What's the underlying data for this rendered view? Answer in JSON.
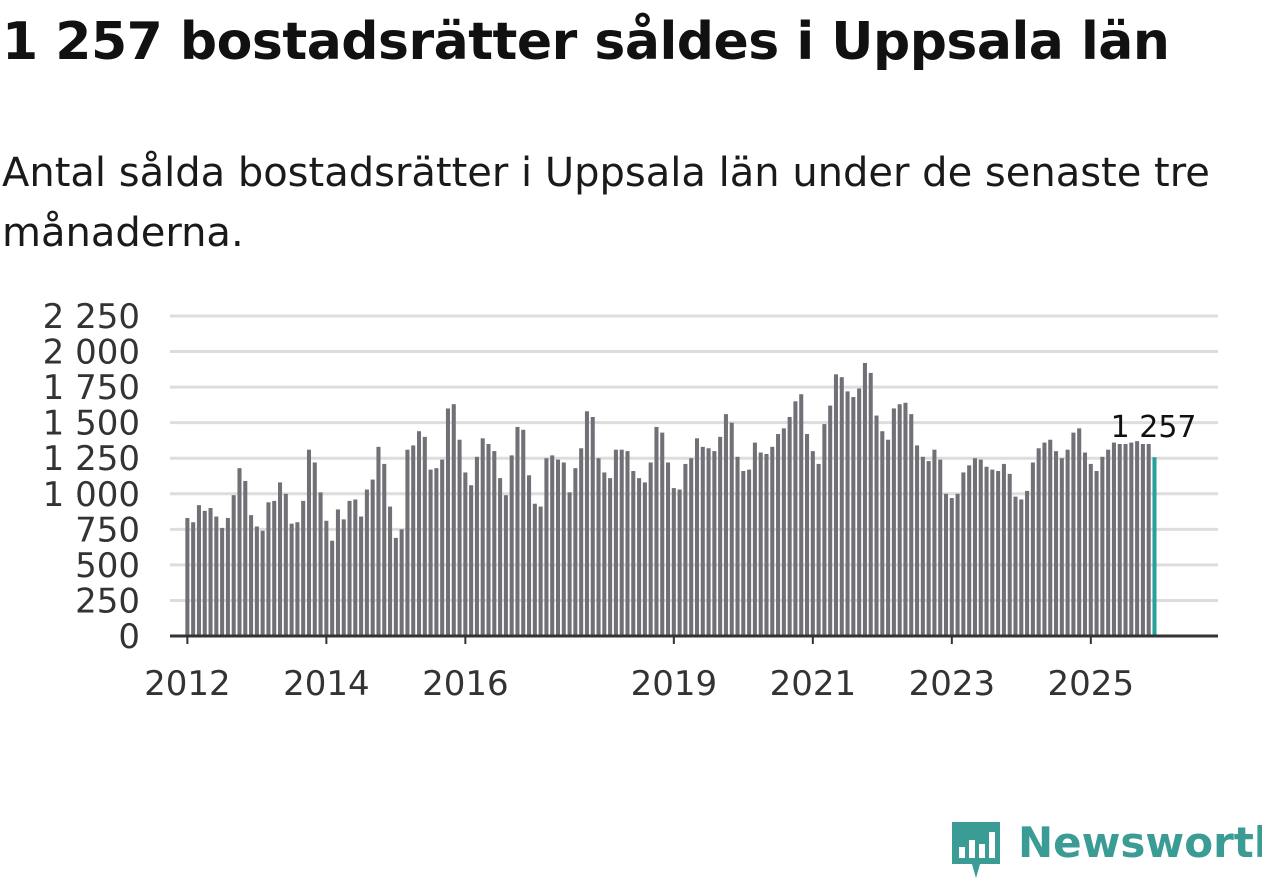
{
  "title": "1 257 bostadsrätter såldes i Uppsala län",
  "subtitle": "Antal sålda bostadsrätter i Uppsala län under de senaste tre månaderna.",
  "brand": {
    "name": "Newsworthy",
    "color": "#3a9c94",
    "icon": "bar-chart-bubble-icon"
  },
  "colors": {
    "bar": "#717076",
    "highlight": "#2aa198",
    "grid": "#dddddd",
    "axis": "#333333"
  },
  "chart_data": {
    "type": "bar",
    "title": "1 257 bostadsrätter såldes i Uppsala län",
    "subtitle": "Antal sålda bostadsrätter i Uppsala län under de senaste tre månaderna.",
    "xlabel": "",
    "ylabel": "",
    "ylim": [
      0,
      2250
    ],
    "yticks": [
      0,
      250,
      500,
      750,
      1000,
      1250,
      1500,
      1750,
      2000,
      2250
    ],
    "ytick_labels": [
      "0",
      "250",
      "500",
      "750",
      "1 000",
      "1 250",
      "1 500",
      "1 750",
      "2 000",
      "2 250"
    ],
    "xlim": [
      2011.75,
      2026.83
    ],
    "xticks": [
      2012,
      2014,
      2016,
      2019,
      2021,
      2023,
      2025
    ],
    "xtick_labels": [
      "2012",
      "2014",
      "2016",
      "2019",
      "2021",
      "2023",
      "2025"
    ],
    "x_start": 2012.0,
    "x_step": 0.08333,
    "grid": true,
    "last_value_label": "1 257",
    "values": [
      830,
      800,
      920,
      880,
      900,
      840,
      760,
      830,
      990,
      1180,
      1090,
      850,
      770,
      740,
      940,
      950,
      1080,
      1000,
      790,
      800,
      950,
      1310,
      1220,
      1010,
      810,
      670,
      890,
      820,
      950,
      960,
      840,
      1030,
      1100,
      1330,
      1210,
      910,
      690,
      750,
      1310,
      1340,
      1440,
      1400,
      1170,
      1180,
      1240,
      1600,
      1630,
      1380,
      1150,
      1060,
      1260,
      1390,
      1350,
      1300,
      1110,
      990,
      1270,
      1470,
      1450,
      1130,
      930,
      910,
      1250,
      1270,
      1240,
      1220,
      1010,
      1180,
      1320,
      1580,
      1540,
      1250,
      1150,
      1110,
      1310,
      1310,
      1300,
      1160,
      1110,
      1080,
      1220,
      1470,
      1430,
      1220,
      1040,
      1030,
      1210,
      1250,
      1390,
      1330,
      1320,
      1300,
      1400,
      1560,
      1500,
      1260,
      1160,
      1170,
      1360,
      1290,
      1280,
      1330,
      1420,
      1460,
      1540,
      1650,
      1700,
      1420,
      1300,
      1210,
      1490,
      1620,
      1840,
      1820,
      1720,
      1680,
      1740,
      1920,
      1850,
      1550,
      1440,
      1380,
      1600,
      1630,
      1640,
      1560,
      1340,
      1260,
      1230,
      1310,
      1240,
      1000,
      970,
      1000,
      1150,
      1200,
      1250,
      1240,
      1190,
      1170,
      1160,
      1210,
      1140,
      980,
      960,
      1020,
      1220,
      1320,
      1360,
      1380,
      1300,
      1250,
      1310,
      1430,
      1460,
      1290,
      1210,
      1160,
      1260,
      1310,
      1360,
      1350,
      1350,
      1360,
      1370,
      1350,
      1350,
      1257
    ]
  }
}
